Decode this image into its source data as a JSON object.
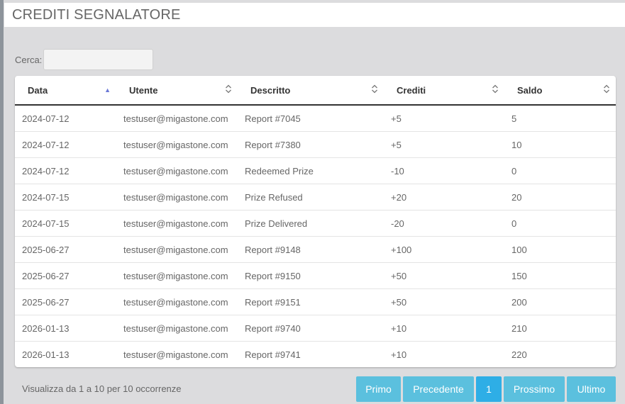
{
  "title": "CREDITI SEGNALATORE",
  "search": {
    "label": "Cerca:",
    "value": "",
    "placeholder": ""
  },
  "table": {
    "columns": [
      "Data",
      "Utente",
      "Descritto",
      "Crediti",
      "Saldo"
    ],
    "rows": [
      [
        "2024-07-12",
        "testuser@migastone.com",
        "Report #7045",
        "+5",
        "5"
      ],
      [
        "2024-07-12",
        "testuser@migastone.com",
        "Report #7380",
        "+5",
        "10"
      ],
      [
        "2024-07-12",
        "testuser@migastone.com",
        "Redeemed Prize",
        "-10",
        "0"
      ],
      [
        "2024-07-15",
        "testuser@migastone.com",
        "Prize Refused",
        "+20",
        "20"
      ],
      [
        "2024-07-15",
        "testuser@migastone.com",
        "Prize Delivered",
        "-20",
        "0"
      ],
      [
        "2025-06-27",
        "testuser@migastone.com",
        "Report #9148",
        "+100",
        "100"
      ],
      [
        "2025-06-27",
        "testuser@migastone.com",
        "Report #9150",
        "+50",
        "150"
      ],
      [
        "2025-06-27",
        "testuser@migastone.com",
        "Report #9151",
        "+50",
        "200"
      ],
      [
        "2026-01-13",
        "testuser@migastone.com",
        "Report #9740",
        "+10",
        "210"
      ],
      [
        "2026-01-13",
        "testuser@migastone.com",
        "Report #9741",
        "+10",
        "220"
      ]
    ]
  },
  "footer": {
    "info": "Visualizza da 1 a 10 per 10 occorrenze",
    "first": "Primo",
    "previous": "Precedente",
    "page": "1",
    "next": "Prossimo",
    "last": "Ultimo"
  },
  "colors": {
    "page_bg": "#dcdcde",
    "button": "#5bc0de",
    "button_active": "#2eaee6",
    "sort_active": "#6a78d6"
  }
}
